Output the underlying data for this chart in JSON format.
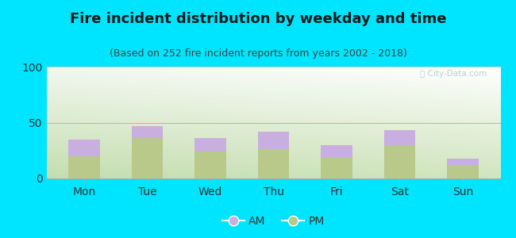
{
  "title": "Fire incident distribution by weekday and time",
  "subtitle": "(Based on 252 fire incident reports from years 2002 - 2018)",
  "days": [
    "Mon",
    "Tue",
    "Wed",
    "Thu",
    "Fri",
    "Sat",
    "Sun"
  ],
  "pm_values": [
    20,
    36,
    24,
    26,
    19,
    30,
    12
  ],
  "am_values": [
    15,
    11,
    12,
    16,
    11,
    13,
    6
  ],
  "am_color": "#c9aee0",
  "pm_color": "#b8c98a",
  "background_color": "#00e5ff",
  "ylim": [
    0,
    100
  ],
  "yticks": [
    0,
    50,
    100
  ],
  "watermark": "Ⓣ City-Data.com",
  "title_fontsize": 13,
  "subtitle_fontsize": 9,
  "bar_width": 0.5
}
